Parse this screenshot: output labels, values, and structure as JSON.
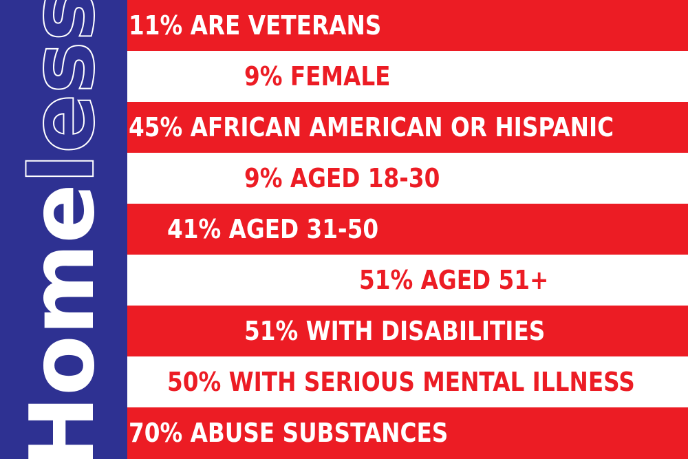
{
  "colors": {
    "red": "#ec1c24",
    "white": "#ffffff",
    "blue": "#2e3192"
  },
  "vertical_title": {
    "solid": "Home",
    "outline": "less"
  },
  "stats": [
    {
      "text": "11% ARE VETERANS",
      "stripe": "red"
    },
    {
      "text": "9% FEMALE",
      "stripe": "white"
    },
    {
      "text": "45% AFRICAN AMERICAN OR HISPANIC",
      "stripe": "red"
    },
    {
      "text": "9% AGED 18-30",
      "stripe": "white"
    },
    {
      "text": "41% AGED 31-50",
      "stripe": "red"
    },
    {
      "text": "51% AGED 51+",
      "stripe": "white"
    },
    {
      "text": "51% WITH DISABILITIES",
      "stripe": "red"
    },
    {
      "text": "50% WITH SERIOUS MENTAL ILLNESS",
      "stripe": "white"
    },
    {
      "text": "70% ABUSE SUBSTANCES",
      "stripe": "red"
    }
  ]
}
